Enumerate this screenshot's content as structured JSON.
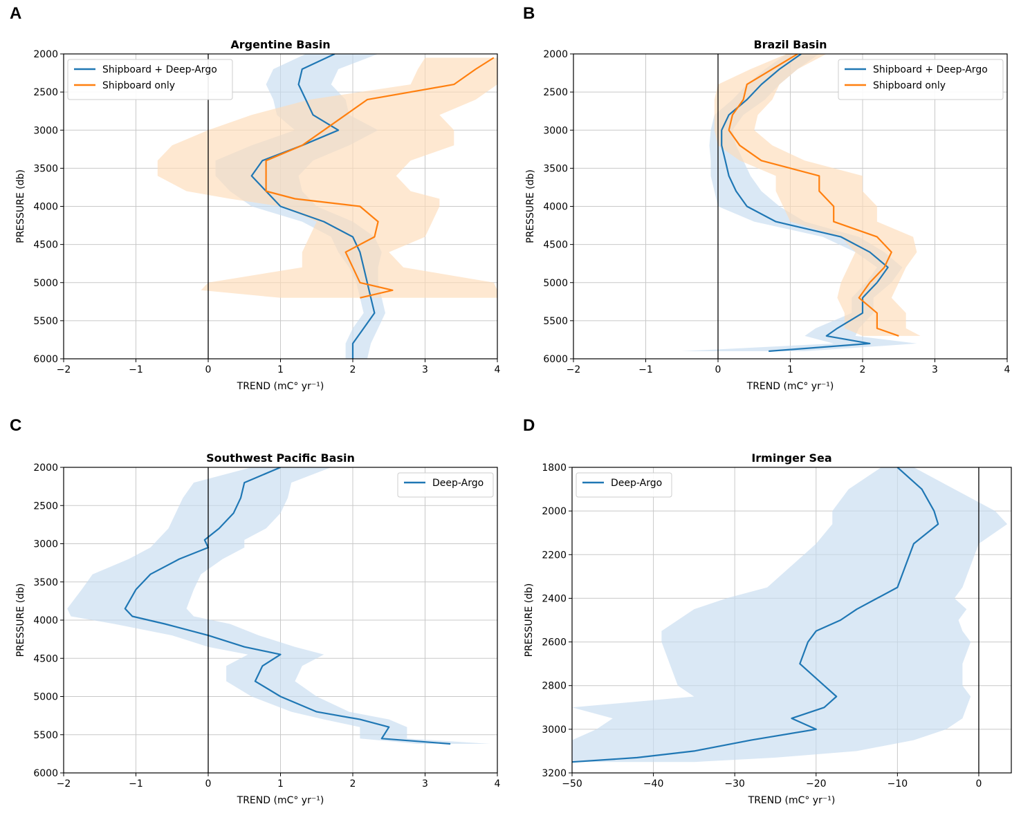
{
  "colors": {
    "blue": "#1f77b4",
    "blue_fill": "#c6dcef",
    "orange": "#ff7f0e",
    "orange_fill": "#fddcb9",
    "grid": "#c8c8c8"
  },
  "chart_data": [
    {
      "id": "A",
      "letter": "A",
      "type": "line",
      "title": "Argentine Basin",
      "xlabel": "TREND (mC° yr⁻¹)",
      "ylabel": "PRESSURE (db)",
      "xlim": [
        -2,
        4
      ],
      "ylim": [
        6000,
        2000
      ],
      "xticks": [
        -2,
        -1,
        0,
        1,
        2,
        3,
        4
      ],
      "xtick_labels": [
        "−2",
        "−1",
        "0",
        "1",
        "2",
        "3",
        "4"
      ],
      "yticks": [
        2000,
        2500,
        3000,
        3500,
        4000,
        4500,
        5000,
        5500,
        6000
      ],
      "ytick_labels": [
        "2000",
        "2500",
        "3000",
        "3500",
        "4000",
        "4500",
        "5000",
        "5500",
        "6000"
      ],
      "legend_position": "top-left",
      "series": [
        {
          "name": "Shipboard + Deep-Argo",
          "color": "#1f77b4",
          "fill": "#c6dcef",
          "pressure": [
            2000,
            2200,
            2400,
            2600,
            2800,
            3000,
            3200,
            3400,
            3600,
            3800,
            4000,
            4200,
            4400,
            4600,
            4800,
            5000,
            5200,
            5400,
            5600,
            5800,
            6000
          ],
          "value": [
            1.75,
            1.3,
            1.25,
            1.35,
            1.45,
            1.8,
            1.3,
            0.75,
            0.6,
            0.8,
            1.0,
            1.6,
            2.0,
            2.1,
            2.15,
            2.2,
            2.25,
            2.3,
            2.15,
            2.0,
            2.0
          ],
          "lower": [
            1.35,
            0.9,
            0.8,
            0.9,
            0.95,
            1.2,
            0.6,
            0.1,
            0.1,
            0.3,
            0.6,
            1.3,
            1.7,
            1.8,
            1.95,
            2.05,
            2.1,
            2.15,
            2.0,
            1.9,
            1.9
          ],
          "upper": [
            2.35,
            1.8,
            1.7,
            1.9,
            1.95,
            2.35,
            1.95,
            1.45,
            1.25,
            1.3,
            1.5,
            2.0,
            2.3,
            2.4,
            2.35,
            2.35,
            2.4,
            2.45,
            2.35,
            2.25,
            2.2
          ]
        },
        {
          "name": "Shipboard only",
          "color": "#ff7f0e",
          "fill": "#fddcb9",
          "pressure": [
            2050,
            2200,
            2400,
            2600,
            2800,
            3000,
            3200,
            3400,
            3600,
            3800,
            3900,
            4000,
            4200,
            4400,
            4600,
            4800,
            5000,
            5100,
            5200
          ],
          "value": [
            3.95,
            3.7,
            3.4,
            2.2,
            1.9,
            1.6,
            1.3,
            0.8,
            0.8,
            0.8,
            1.2,
            2.1,
            2.35,
            2.3,
            1.9,
            2.0,
            2.1,
            2.55,
            2.1
          ],
          "lower": [
            3.0,
            2.9,
            2.8,
            1.4,
            0.6,
            0.0,
            -0.5,
            -0.7,
            -0.7,
            -0.3,
            0.3,
            1.0,
            1.5,
            1.4,
            1.3,
            1.3,
            0.0,
            -0.1,
            1.0
          ],
          "upper": [
            4.0,
            4.0,
            4.0,
            3.7,
            3.2,
            3.4,
            3.4,
            2.8,
            2.6,
            2.8,
            3.2,
            3.2,
            3.1,
            3.0,
            2.5,
            2.7,
            3.95,
            4.0,
            4.0
          ]
        }
      ]
    },
    {
      "id": "B",
      "letter": "B",
      "type": "line",
      "title": "Brazil Basin",
      "xlabel": "TREND (mC° yr⁻¹)",
      "ylabel": "PRESSURE (db)",
      "xlim": [
        -2,
        4
      ],
      "ylim": [
        6000,
        2000
      ],
      "xticks": [
        -2,
        -1,
        0,
        1,
        2,
        3,
        4
      ],
      "xtick_labels": [
        "−2",
        "−1",
        "0",
        "1",
        "2",
        "3",
        "4"
      ],
      "yticks": [
        2000,
        2500,
        3000,
        3500,
        4000,
        4500,
        5000,
        5500,
        6000
      ],
      "ytick_labels": [
        "2000",
        "2500",
        "3000",
        "3500",
        "4000",
        "4500",
        "5000",
        "5500",
        "6000"
      ],
      "legend_position": "top-right",
      "series": [
        {
          "name": "Shipboard + Deep-Argo",
          "color": "#1f77b4",
          "fill": "#c6dcef",
          "pressure": [
            2000,
            2200,
            2400,
            2600,
            2800,
            3000,
            3200,
            3400,
            3600,
            3800,
            4000,
            4200,
            4400,
            4600,
            4800,
            5000,
            5200,
            5400,
            5600,
            5700,
            5800,
            5900
          ],
          "value": [
            1.15,
            0.85,
            0.6,
            0.4,
            0.15,
            0.05,
            0.05,
            0.1,
            0.15,
            0.25,
            0.4,
            0.8,
            1.7,
            2.1,
            2.35,
            2.2,
            2.0,
            2.0,
            1.65,
            1.5,
            2.1,
            0.7
          ],
          "lower": [
            0.95,
            0.65,
            0.4,
            0.2,
            -0.05,
            -0.1,
            -0.12,
            -0.1,
            -0.1,
            -0.05,
            0.0,
            0.5,
            1.45,
            1.9,
            2.2,
            2.05,
            1.85,
            1.85,
            1.35,
            1.2,
            1.6,
            -0.5
          ],
          "upper": [
            1.4,
            1.1,
            0.85,
            0.65,
            0.35,
            0.2,
            0.25,
            0.35,
            0.45,
            0.6,
            0.85,
            1.2,
            1.95,
            2.3,
            2.55,
            2.4,
            2.15,
            2.15,
            1.95,
            1.9,
            2.75,
            1.2
          ]
        },
        {
          "name": "Shipboard only",
          "color": "#ff7f0e",
          "fill": "#fddcb9",
          "pressure": [
            2000,
            2200,
            2400,
            2600,
            2800,
            3000,
            3200,
            3400,
            3600,
            3800,
            4000,
            4200,
            4400,
            4600,
            4800,
            5000,
            5200,
            5400,
            5600,
            5700
          ],
          "value": [
            1.1,
            0.75,
            0.4,
            0.35,
            0.2,
            0.15,
            0.3,
            0.6,
            1.4,
            1.4,
            1.6,
            1.6,
            2.2,
            2.4,
            2.3,
            2.1,
            1.95,
            2.2,
            2.2,
            2.5
          ],
          "lower": [
            0.95,
            0.45,
            0.0,
            -0.05,
            -0.05,
            -0.05,
            0.0,
            0.3,
            0.8,
            0.8,
            0.9,
            1.0,
            1.7,
            1.9,
            1.8,
            1.7,
            1.65,
            1.75,
            1.75,
            2.0
          ],
          "upper": [
            1.5,
            1.1,
            0.85,
            0.75,
            0.55,
            0.5,
            0.75,
            1.2,
            2.0,
            2.0,
            2.2,
            2.2,
            2.7,
            2.75,
            2.6,
            2.5,
            2.4,
            2.6,
            2.6,
            2.8
          ]
        }
      ]
    },
    {
      "id": "C",
      "letter": "C",
      "type": "line",
      "title": "Southwest Pacific Basin",
      "xlabel": "TREND (mC° yr⁻¹)",
      "ylabel": "PRESSURE (db)",
      "xlim": [
        -2,
        4
      ],
      "ylim": [
        6000,
        2000
      ],
      "xticks": [
        -2,
        -1,
        0,
        1,
        2,
        3,
        4
      ],
      "xtick_labels": [
        "−2",
        "−1",
        "0",
        "1",
        "2",
        "3",
        "4"
      ],
      "yticks": [
        2000,
        2500,
        3000,
        3500,
        4000,
        4500,
        5000,
        5500,
        6000
      ],
      "ytick_labels": [
        "2000",
        "2500",
        "3000",
        "3500",
        "4000",
        "4500",
        "5000",
        "5500",
        "6000"
      ],
      "legend_position": "top-right",
      "series": [
        {
          "name": "Deep-Argo",
          "color": "#1f77b4",
          "fill": "#c6dcef",
          "pressure": [
            2000,
            2200,
            2400,
            2600,
            2800,
            2950,
            3050,
            3200,
            3400,
            3600,
            3850,
            3950,
            4050,
            4200,
            4350,
            4450,
            4600,
            4800,
            5000,
            5200,
            5300,
            5400,
            5550,
            5620
          ],
          "value": [
            1.0,
            0.5,
            0.45,
            0.35,
            0.15,
            -0.05,
            0.0,
            -0.4,
            -0.8,
            -1.0,
            -1.15,
            -1.05,
            -0.6,
            0.0,
            0.5,
            1.0,
            0.75,
            0.65,
            1.0,
            1.5,
            2.1,
            2.5,
            2.4,
            3.35
          ],
          "lower": [
            0.6,
            -0.2,
            -0.35,
            -0.45,
            -0.55,
            -0.7,
            -0.8,
            -1.1,
            -1.6,
            -1.75,
            -1.95,
            -1.9,
            -1.3,
            -0.5,
            0.0,
            0.55,
            0.25,
            0.25,
            0.6,
            1.15,
            1.6,
            2.1,
            2.1,
            2.9
          ],
          "upper": [
            1.7,
            1.15,
            1.1,
            1.0,
            0.8,
            0.5,
            0.5,
            0.2,
            -0.1,
            -0.2,
            -0.3,
            -0.2,
            0.3,
            0.7,
            1.2,
            1.6,
            1.3,
            1.2,
            1.5,
            1.95,
            2.5,
            2.75,
            2.75,
            3.9
          ]
        }
      ]
    },
    {
      "id": "D",
      "letter": "D",
      "type": "line",
      "title": "Irminger Sea",
      "xlabel": "TREND (mC° yr⁻¹)",
      "ylabel": "PRESSURE (db)",
      "xlim": [
        -50,
        4
      ],
      "ylim": [
        3200,
        1800
      ],
      "xticks": [
        -50,
        -40,
        -30,
        -20,
        -10,
        0
      ],
      "xtick_labels": [
        "−50",
        "−40",
        "−30",
        "−20",
        "−10",
        "0"
      ],
      "yticks": [
        1800,
        2000,
        2200,
        2400,
        2600,
        2800,
        3000,
        3200
      ],
      "ytick_labels": [
        "1800",
        "2000",
        "2200",
        "2400",
        "2600",
        "2800",
        "3000",
        "3200"
      ],
      "legend_position": "top-left",
      "series": [
        {
          "name": "Deep-Argo",
          "color": "#1f77b4",
          "fill": "#c6dcef",
          "pressure": [
            1800,
            1900,
            2000,
            2060,
            2150,
            2250,
            2350,
            2400,
            2450,
            2500,
            2550,
            2600,
            2700,
            2800,
            2850,
            2900,
            2950,
            3000,
            3050,
            3100,
            3130,
            3150
          ],
          "value": [
            -10,
            -7,
            -5.5,
            -5,
            -8,
            -9,
            -10,
            -12.5,
            -15,
            -17,
            -20,
            -21,
            -22,
            -19,
            -17.5,
            -19,
            -23,
            -20,
            -28,
            -35,
            -42,
            -50
          ],
          "lower": [
            -12,
            -16,
            -18,
            -18,
            -20,
            -23,
            -26,
            -31,
            -35,
            -37,
            -39,
            -39,
            -38,
            -37,
            -35,
            -50,
            -45,
            -47,
            -50,
            -50,
            -50,
            -50
          ],
          "upper": [
            -8,
            -3,
            2,
            3.5,
            0,
            -1,
            -2,
            -3,
            -1.5,
            -2.5,
            -2,
            -1,
            -2,
            -2,
            -1,
            -1.5,
            -2,
            -4,
            -8,
            -15,
            -25,
            -35
          ]
        }
      ]
    }
  ]
}
